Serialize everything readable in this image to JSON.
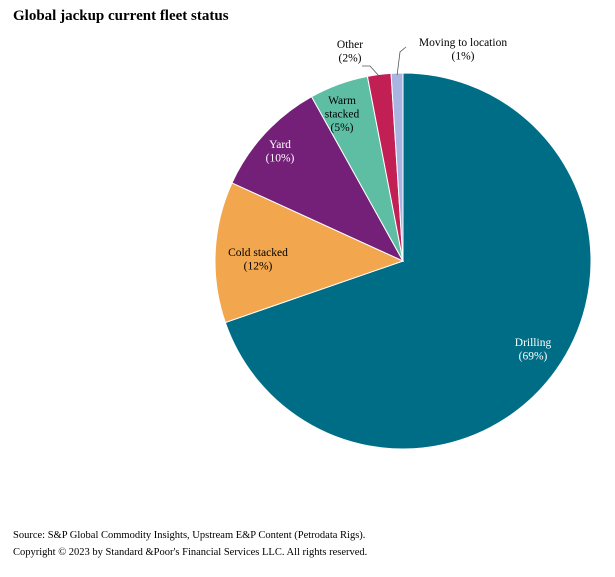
{
  "chart_data": {
    "type": "pie",
    "title": "Global jackup current fleet status",
    "slices": [
      {
        "label": "Drilling",
        "pct_label": "(69%)",
        "value": 69,
        "color": "#006d86"
      },
      {
        "label": "Cold stacked",
        "pct_label": "(12%)",
        "value": 12,
        "color": "#f2a64d"
      },
      {
        "label": "Yard",
        "pct_label": "(10%)",
        "value": 10,
        "color": "#741f78"
      },
      {
        "label": "Warm stacked",
        "pct_label": "(5%)",
        "value": 5,
        "color": "#5dbea3"
      },
      {
        "label": "Other",
        "pct_label": "(2%)",
        "value": 2,
        "color": "#c21f55"
      },
      {
        "label": "Moving to location",
        "pct_label": "(1%)",
        "value": 1,
        "color": "#a9b4e0"
      }
    ],
    "start": "12 o'clock",
    "direction": "clockwise",
    "legend": "none"
  },
  "footer": {
    "source": "Source: S&P Global Commodity Insights, Upstream E&P Content (Petrodata Rigs).",
    "copyright": "Copyright © 2023 by Standard &Poor's Financial Services LLC. All rights reserved."
  }
}
